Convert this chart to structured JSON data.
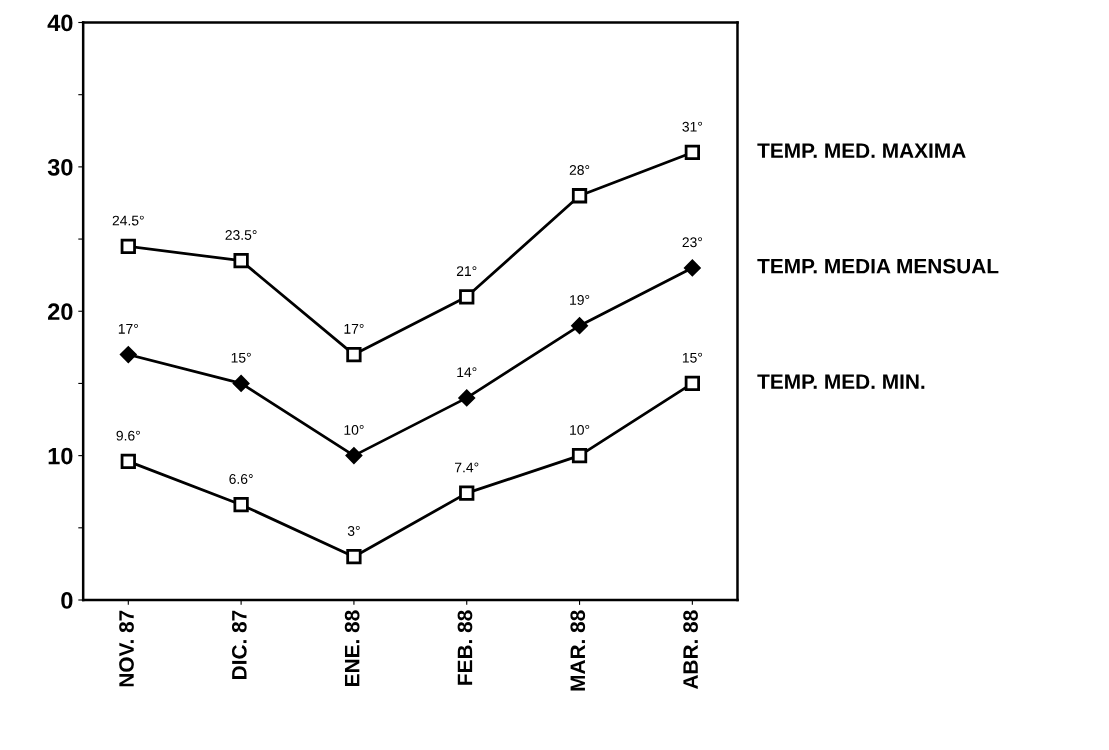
{
  "chart_data": {
    "type": "line",
    "categories": [
      "NOV. 87",
      "DIC. 87",
      "ENE. 88",
      "FEB. 88",
      "MAR. 88",
      "ABR. 88"
    ],
    "series": [
      {
        "name": "TEMP. MED. MAXIMA",
        "color": "#000000",
        "marker": "square",
        "values": [
          24.5,
          23.5,
          17,
          21,
          28,
          31
        ],
        "value_labels": [
          "24.5°",
          "23.5°",
          "17°",
          "21°",
          "28°",
          "31°"
        ]
      },
      {
        "name": "TEMP. MEDIA MENSUAL",
        "color": "#000000",
        "marker": "diamond",
        "values": [
          17,
          15,
          10,
          14,
          19,
          23
        ],
        "value_labels": [
          "17°",
          "15°",
          "10°",
          "14°",
          "19°",
          "23°"
        ]
      },
      {
        "name": "TEMP. MED. MIN.",
        "color": "#000000",
        "marker": "square",
        "values": [
          9.6,
          6.6,
          3,
          7.4,
          10,
          15
        ],
        "value_labels": [
          "9.6°",
          "6.6°",
          "3°",
          "7.4°",
          "10°",
          "15°"
        ]
      }
    ],
    "ylim": [
      0,
      40
    ],
    "yticks": [
      0,
      {
        "value": 5,
        "label": null
      },
      10,
      {
        "value": 15,
        "label": null
      },
      20,
      {
        "value": 25,
        "label": null
      },
      30,
      {
        "value": 35,
        "label": null
      },
      40
    ],
    "line_style": "solid",
    "grid": false
  }
}
